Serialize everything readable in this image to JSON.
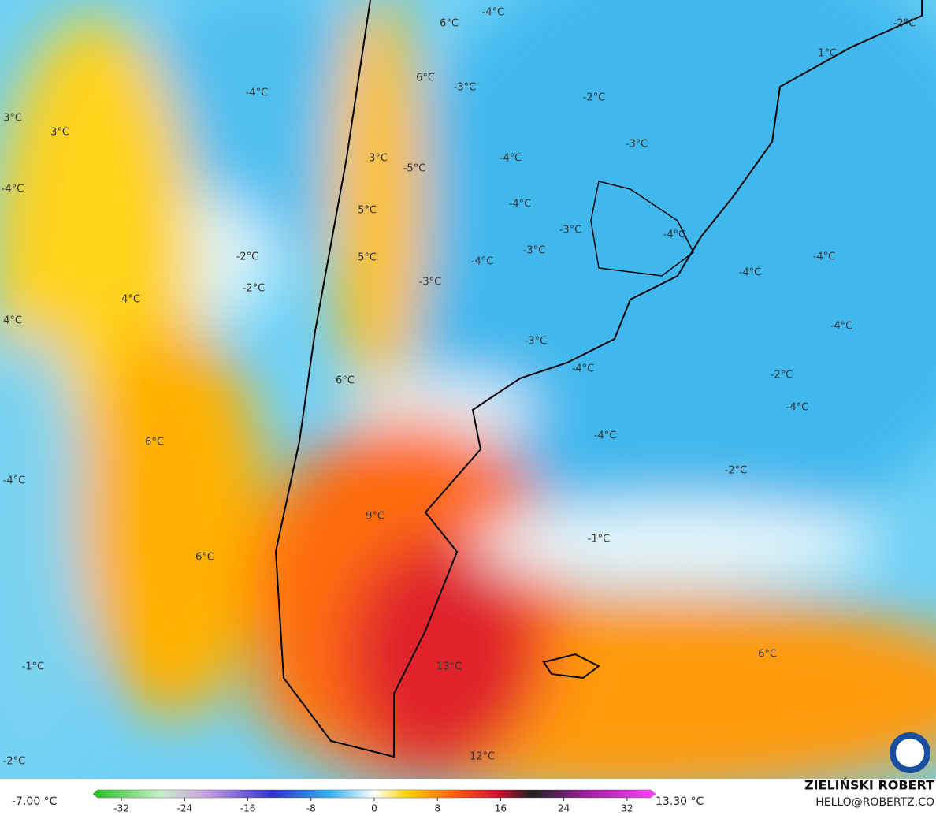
{
  "map": {
    "labels": [
      "-4°C",
      "6°C",
      "-2°C",
      "1°C",
      "6°C",
      "-3°C",
      "-4°C",
      "-2°C",
      "3°C",
      "3°C",
      "-3°C",
      "3°C",
      "-5°C",
      "-4°C",
      "-4°C",
      "-4°C",
      "5°C",
      "-3°C",
      "-4°C",
      "-2°C",
      "5°C",
      "-3°C",
      "-4°C",
      "-4°C",
      "-4°C",
      "-2°C",
      "-3°C",
      "4°C",
      "4°C",
      "-4°C",
      "-3°C",
      "-4°C",
      "-2°C",
      "6°C",
      "-4°C",
      "-4°C",
      "6°C",
      "-2°C",
      "-4°C",
      "9°C",
      "-1°C",
      "6°C",
      "6°C",
      "13°C",
      "-1°C",
      "12°C",
      "-2°C"
    ]
  },
  "colorbar": {
    "min_label": "-7.00 °C",
    "max_label": "13.30 °C",
    "range": [
      -36,
      36
    ],
    "ticks": [
      -32,
      -24,
      -16,
      -8,
      0,
      8,
      16,
      24,
      32
    ]
  },
  "credits": {
    "name": "ZIELIŃSKI ROBERT",
    "contact": "HELLO@ROBERTZ.CO"
  }
}
